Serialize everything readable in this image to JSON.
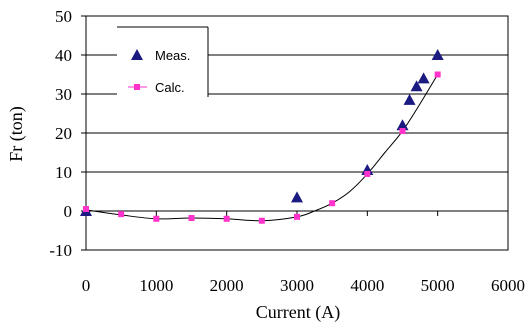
{
  "chart_data": {
    "type": "scatter",
    "xlabel": "Current (A)",
    "ylabel": "Fr (ton)",
    "xlim": [
      0,
      6000
    ],
    "ylim": [
      -10,
      50
    ],
    "xticks": [
      0,
      1000,
      2000,
      3000,
      4000,
      5000,
      6000
    ],
    "yticks": [
      -10,
      0,
      10,
      20,
      30,
      40,
      50
    ],
    "grid": "horizontal",
    "legend_position": "top-left",
    "series": [
      {
        "name": "Meas.",
        "marker": "triangle",
        "color": "#1a1a80",
        "x": [
          0,
          3000,
          4000,
          4500,
          4600,
          4700,
          4800,
          5000
        ],
        "y": [
          0,
          3.5,
          10.5,
          22,
          28.5,
          32,
          34,
          40
        ]
      },
      {
        "name": "Calc.",
        "marker": "square",
        "color": "#ff33cc",
        "x": [
          0,
          500,
          1000,
          1500,
          2000,
          2500,
          3000,
          3500,
          4000,
          4500,
          5000
        ],
        "y": [
          0.5,
          -0.8,
          -2,
          -1.8,
          -2,
          -2.5,
          -1.5,
          2,
          9.5,
          20.5,
          35
        ]
      }
    ],
    "trend_line": {
      "color": "#000000",
      "x": [
        0,
        500,
        1000,
        1500,
        2000,
        2500,
        3000,
        3250,
        3500,
        3750,
        4000,
        4250,
        4500,
        4750,
        5000
      ],
      "y": [
        0.3,
        -1.0,
        -2.0,
        -1.8,
        -2.0,
        -2.5,
        -1.5,
        0.0,
        2.0,
        5.0,
        9.5,
        15.0,
        20.5,
        27.5,
        35.0
      ]
    }
  }
}
